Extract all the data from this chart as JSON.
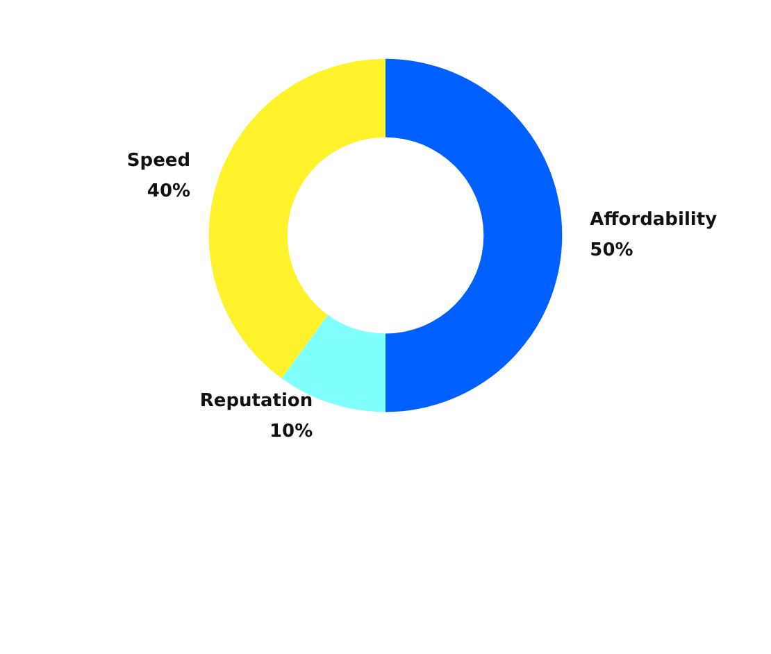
{
  "chart_data": {
    "type": "donut",
    "categories": [
      "Affordability",
      "Reputation",
      "Speed"
    ],
    "values": [
      50,
      10,
      40
    ],
    "value_labels": [
      "50%",
      "10%",
      "40%"
    ],
    "colors": [
      "#0060ff",
      "#80ffff",
      "#fff22a"
    ],
    "legend": false
  }
}
